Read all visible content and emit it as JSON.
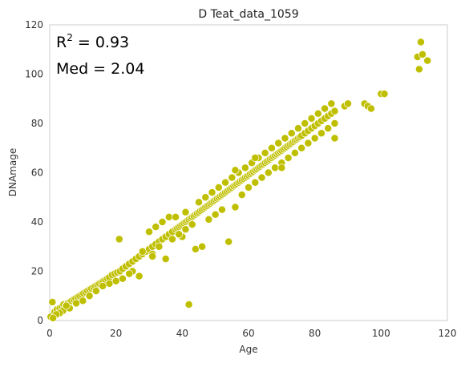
{
  "chart_data": {
    "type": "scatter",
    "title": "D Teat_data_1059",
    "xlabel": "Age",
    "ylabel": "DNAmage",
    "xlim": [
      0,
      120
    ],
    "ylim": [
      0,
      120
    ],
    "xticks": [
      0,
      20,
      40,
      60,
      80,
      100,
      120
    ],
    "yticks": [
      0,
      20,
      40,
      60,
      80,
      100,
      120
    ],
    "grid": false,
    "annotations": {
      "r2_prefix": "R",
      "r2_sup": "2",
      "r2_value": " = 0.93",
      "med": "Med = 2.04"
    },
    "marker_color": "#bfbf00",
    "marker_edge": "#ffffff",
    "series": [
      {
        "x": [
          0.3,
          0.8,
          1.5,
          2.2,
          3.0,
          3.6,
          4.2,
          4.8,
          5.4,
          6.0,
          6.6,
          7.2,
          7.8,
          8.4,
          9.0,
          9.6,
          10.2,
          10.8,
          11.4,
          12.0,
          12.6,
          13.2,
          13.8,
          14.4,
          15.0,
          15.6,
          16.2,
          16.8,
          17.4,
          18.0,
          18.8,
          19.6,
          20.4,
          21.2,
          22.0,
          23.0,
          24.0,
          25.0,
          26.0,
          27.0,
          28.0,
          29.0,
          30.0,
          31.0,
          32.0,
          33.0,
          34.0,
          35.0,
          36.0,
          37.0,
          38.0,
          38.5,
          39.0,
          39.5,
          40.0,
          40.5,
          41.0,
          41.5,
          42.0,
          42.5,
          43.0,
          43.5,
          44.0,
          44.5,
          45.0,
          45.5,
          46.0,
          46.5,
          47.0,
          47.5,
          48.0,
          48.5,
          49.0,
          49.5,
          50.0,
          50.5,
          51.0,
          51.5,
          52.0,
          52.5,
          53.0,
          53.5,
          54.0,
          54.5,
          55.0,
          55.5,
          56.0,
          56.5,
          57.0,
          57.5,
          58.0,
          58.5,
          59.0,
          59.5,
          60.0,
          60.5,
          61.0,
          61.5,
          62.0,
          62.5,
          63.0,
          63.5,
          64.0,
          64.5,
          65.0,
          65.5,
          66.0,
          66.5,
          67.0,
          67.5,
          68.0,
          68.5,
          69.0,
          69.5,
          70.0,
          70.5,
          71.0,
          71.5,
          72.0,
          72.5,
          73.0,
          73.5,
          74.0,
          74.5,
          75.0,
          75.5,
          76.0,
          77.0,
          78.0,
          79.0,
          80.0,
          81.0,
          82.0,
          83.0,
          84.0,
          85.0,
          86.0,
          89.0,
          90.0,
          95.0,
          96.0,
          97.0,
          100.0,
          101.0,
          111.0,
          111.5,
          112.0,
          112.5,
          114.0,
          42.0,
          54.0,
          44.0,
          46.0,
          35.0,
          40.0,
          48.0,
          50.0,
          52.0,
          58.0,
          60.0,
          62.0,
          64.0,
          66.0,
          68.0,
          70.0,
          72.0,
          74.0,
          76.0,
          78.0,
          80.0,
          82.0,
          84.0,
          86.0,
          30.0,
          32.0,
          34.0,
          36.0,
          25.0,
          27.0,
          22.0,
          24.0,
          18.0,
          20.0,
          14.0,
          16.0,
          12.0,
          10.0,
          8.0,
          6.0,
          4.0,
          5.0,
          3.0,
          2.0,
          1.0,
          45.0,
          47.0,
          49.0,
          51.0,
          53.0,
          55.0,
          57.0,
          59.0,
          61.0,
          63.0,
          65.0,
          67.0,
          69.0,
          71.0,
          73.0,
          75.0,
          77.0,
          79.0,
          81.0,
          83.0,
          85.0,
          28.0,
          31.0,
          33.0,
          37.0,
          39.0,
          41.0,
          43.0,
          56.0,
          38.0,
          41.0,
          21.0,
          31.0,
          56.0,
          62.0,
          70.0,
          86.0
        ],
        "y": [
          1.5,
          7.5,
          3.5,
          4.5,
          5.0,
          5.5,
          6.5,
          6.0,
          7.0,
          7.5,
          8.0,
          8.5,
          9.0,
          9.5,
          10.0,
          10.5,
          11.0,
          11.5,
          12.0,
          12.5,
          13.0,
          13.5,
          14.0,
          14.5,
          15.0,
          15.5,
          16.0,
          16.5,
          17.0,
          17.5,
          18.5,
          19.0,
          19.5,
          20.0,
          21.0,
          22.0,
          23.0,
          24.0,
          25.0,
          26.0,
          27.0,
          28.0,
          29.0,
          30.0,
          31.0,
          32.0,
          33.0,
          34.0,
          35.0,
          36.0,
          37.0,
          37.5,
          38.0,
          38.5,
          39.0,
          39.5,
          40.0,
          40.5,
          41.0,
          41.5,
          42.0,
          42.5,
          43.0,
          43.5,
          44.0,
          44.5,
          45.0,
          45.5,
          46.0,
          46.5,
          47.0,
          47.5,
          48.0,
          48.5,
          49.0,
          49.5,
          50.0,
          50.5,
          51.0,
          51.5,
          52.0,
          52.5,
          53.0,
          53.5,
          54.0,
          54.5,
          55.0,
          55.5,
          56.0,
          56.5,
          57.0,
          57.5,
          58.0,
          58.5,
          59.0,
          59.5,
          60.0,
          60.5,
          61.0,
          61.5,
          62.0,
          62.5,
          63.0,
          63.5,
          64.0,
          64.5,
          65.0,
          65.5,
          66.0,
          66.5,
          67.0,
          67.5,
          68.0,
          68.5,
          69.0,
          69.5,
          70.0,
          70.5,
          71.0,
          71.5,
          72.0,
          72.5,
          73.0,
          73.5,
          74.0,
          74.5,
          75.0,
          76.0,
          77.0,
          78.0,
          79.0,
          80.0,
          81.0,
          82.0,
          83.0,
          84.0,
          85.0,
          87.0,
          88.0,
          88.0,
          87.0,
          86.0,
          92.0,
          92.0,
          107.0,
          102.0,
          113.0,
          108.0,
          105.5,
          6.5,
          32.0,
          29.0,
          30.0,
          25.0,
          34.0,
          41.0,
          43.0,
          45.0,
          51.0,
          54.0,
          56.0,
          58.0,
          60.0,
          62.0,
          64.0,
          66.0,
          68.0,
          70.0,
          72.0,
          74.0,
          76.0,
          78.0,
          80.0,
          36.0,
          38.0,
          40.0,
          42.0,
          20.0,
          18.0,
          17.0,
          19.0,
          15.0,
          16.0,
          12.0,
          14.0,
          10.0,
          8.0,
          7.0,
          5.0,
          4.0,
          6.0,
          3.0,
          2.5,
          1.0,
          48.0,
          50.0,
          52.0,
          54.0,
          56.0,
          58.0,
          60.0,
          62.0,
          64.0,
          66.0,
          68.0,
          70.0,
          72.0,
          74.0,
          76.0,
          78.0,
          80.0,
          82.0,
          84.0,
          86.0,
          88.0,
          28.0,
          27.0,
          30.0,
          33.0,
          35.0,
          37.0,
          39.0,
          46.0,
          42.0,
          44.0,
          33.0,
          26.0,
          61.0,
          66.0,
          62.0,
          74.0
        ]
      }
    ]
  }
}
